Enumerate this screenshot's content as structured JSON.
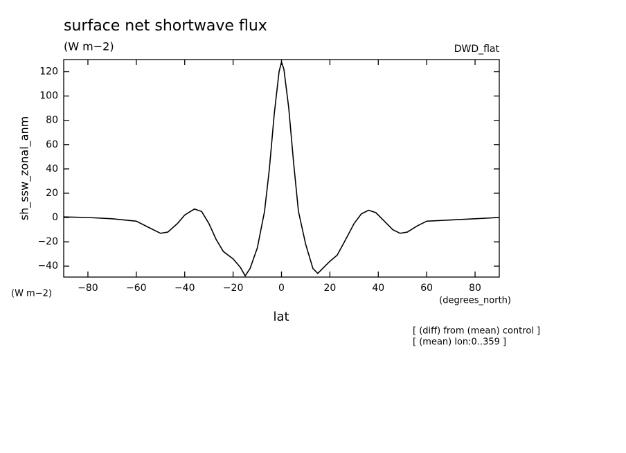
{
  "chart_data": {
    "type": "line",
    "title": "surface net shortwave flux",
    "subtitle": "(W m−2)",
    "experiment": "DWD_flat",
    "ylabel": "sh_ssw_zonal_anm",
    "yunits": "(W m−2)",
    "xunits": "(degrees_north)",
    "xlabel": "lat",
    "notes": [
      "[ (diff) from (mean) control ]",
      "[ (mean) lon:0..359 ]"
    ],
    "xlim": [
      -90,
      90
    ],
    "ylim": [
      -49,
      130
    ],
    "xticks": [
      {
        "value": -80,
        "label": "−80"
      },
      {
        "value": -60,
        "label": "−60"
      },
      {
        "value": -40,
        "label": "−40"
      },
      {
        "value": -20,
        "label": "−20"
      },
      0,
      20,
      40,
      60,
      80
    ],
    "yticks": [
      {
        "value": -40,
        "label": "−40"
      },
      {
        "value": -20,
        "label": "−20"
      },
      0,
      20,
      40,
      60,
      80,
      100,
      120
    ],
    "series": [
      {
        "color": "#000000",
        "x": [
          -90,
          -80,
          -70,
          -60,
          -55,
          -50,
          -47,
          -43,
          -40,
          -36,
          -33,
          -30,
          -27,
          -24,
          -20,
          -17,
          -15,
          -13,
          -10,
          -7,
          -5,
          -3,
          -1,
          0,
          1,
          3,
          5,
          7,
          10,
          13,
          15,
          17,
          20,
          23,
          26,
          30,
          33,
          36,
          39,
          42,
          46,
          49,
          52,
          56,
          60,
          70,
          80,
          90
        ],
        "values": [
          0.5,
          0,
          -1,
          -3,
          -8,
          -13,
          -12,
          -5,
          2,
          7,
          5,
          -5,
          -18,
          -28,
          -34,
          -41,
          -48,
          -42,
          -25,
          5,
          40,
          85,
          120,
          128,
          122,
          90,
          45,
          5,
          -22,
          -42,
          -46,
          -42,
          -36,
          -31,
          -20,
          -5,
          3,
          6,
          4,
          -2,
          -10,
          -13,
          -12,
          -7,
          -3,
          -2,
          -1,
          0
        ]
      }
    ]
  }
}
